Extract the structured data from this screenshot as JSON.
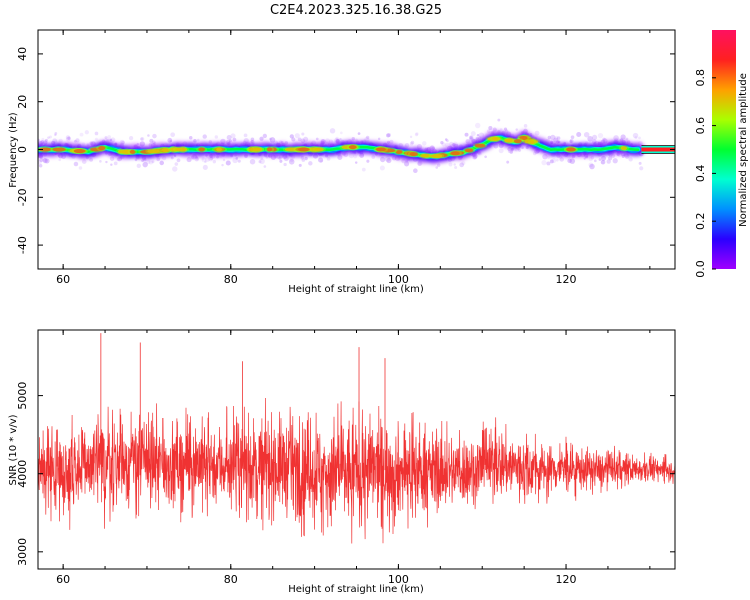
{
  "figure": {
    "title": "C2E4.2023.325.16.38.G25"
  },
  "colors": {
    "snr_line": "#f03232",
    "axis": "#000000",
    "background": "#ffffff"
  },
  "chart_data": [
    {
      "type": "heatmap",
      "xlabel": "Height of straight line (km)",
      "ylabel": "Frequency (Hz)",
      "xlim": [
        57,
        133
      ],
      "ylim": [
        -50,
        50
      ],
      "xticks": [
        60,
        80,
        100,
        120
      ],
      "yticks": [
        -40,
        -20,
        0,
        20,
        40
      ],
      "ridge": {
        "x": [
          57,
          60,
          63,
          65,
          67,
          70,
          73,
          76,
          79,
          82,
          85,
          88,
          90,
          92,
          94,
          96,
          98,
          100,
          102,
          104,
          106,
          108,
          110,
          111,
          112,
          113,
          114,
          115,
          116,
          118,
          120,
          122,
          124,
          126,
          128,
          129
        ],
        "y": [
          0,
          0,
          -1,
          1,
          -1,
          -1,
          0,
          0,
          0,
          0,
          0,
          0,
          0,
          0,
          1,
          1,
          0,
          -1,
          -2,
          -3,
          -2,
          -1,
          2,
          4,
          5,
          4,
          3,
          5,
          3,
          0,
          0,
          0,
          0,
          1,
          0,
          0
        ]
      },
      "flat_segment": {
        "x": [
          129,
          133
        ],
        "y": 0
      },
      "colorbar": {
        "label": "Normalized spectral amplitude",
        "range": [
          0,
          1
        ],
        "ticks": [
          0.0,
          0.2,
          0.4,
          0.6,
          0.8
        ],
        "tick_labels": [
          "0.0",
          "0.2",
          "0.4",
          "0.6",
          "0.8"
        ],
        "colormap": [
          "#a000ff",
          "#2a00ff",
          "#0090ff",
          "#00ffd0",
          "#00ff30",
          "#aaff00",
          "#ffa000",
          "#ff2020",
          "#ff1060"
        ]
      },
      "grid": false
    },
    {
      "type": "line",
      "xlabel": "Height of straight line (km)",
      "ylabel": "SNR (10 * v/v)",
      "xlim": [
        57,
        133
      ],
      "ylim": [
        2780,
        5840
      ],
      "xticks": [
        60,
        80,
        100,
        120
      ],
      "yticks": [
        3000,
        4000,
        5000
      ],
      "series": [
        {
          "envelope_x": [
            57,
            60,
            63,
            65,
            67,
            70,
            73,
            76,
            79,
            82,
            85,
            88,
            91,
            94,
            96,
            98,
            100,
            103,
            106,
            109,
            112,
            115,
            118,
            121,
            124,
            127,
            130,
            133
          ],
          "upper": [
            4670,
            4640,
            4780,
            4850,
            4780,
            4780,
            4700,
            4770,
            4700,
            4780,
            4830,
            4780,
            4750,
            4830,
            4850,
            4760,
            4700,
            4620,
            4580,
            4560,
            4650,
            4520,
            4420,
            4400,
            4320,
            4280,
            4240,
            4200
          ],
          "lower": [
            3520,
            3420,
            3460,
            3380,
            3470,
            3550,
            3510,
            3560,
            3520,
            3450,
            3400,
            3380,
            3280,
            3200,
            3260,
            3340,
            3360,
            3450,
            3470,
            3560,
            3620,
            3620,
            3700,
            3730,
            3780,
            3840,
            3880,
            3900
          ],
          "spikes_up": [
            {
              "x": 64.5,
              "y": 5800
            },
            {
              "x": 69.2,
              "y": 5680
            },
            {
              "x": 81.4,
              "y": 5440
            },
            {
              "x": 95.3,
              "y": 5620
            },
            {
              "x": 98.4,
              "y": 5480
            }
          ]
        }
      ],
      "grid": false
    }
  ]
}
